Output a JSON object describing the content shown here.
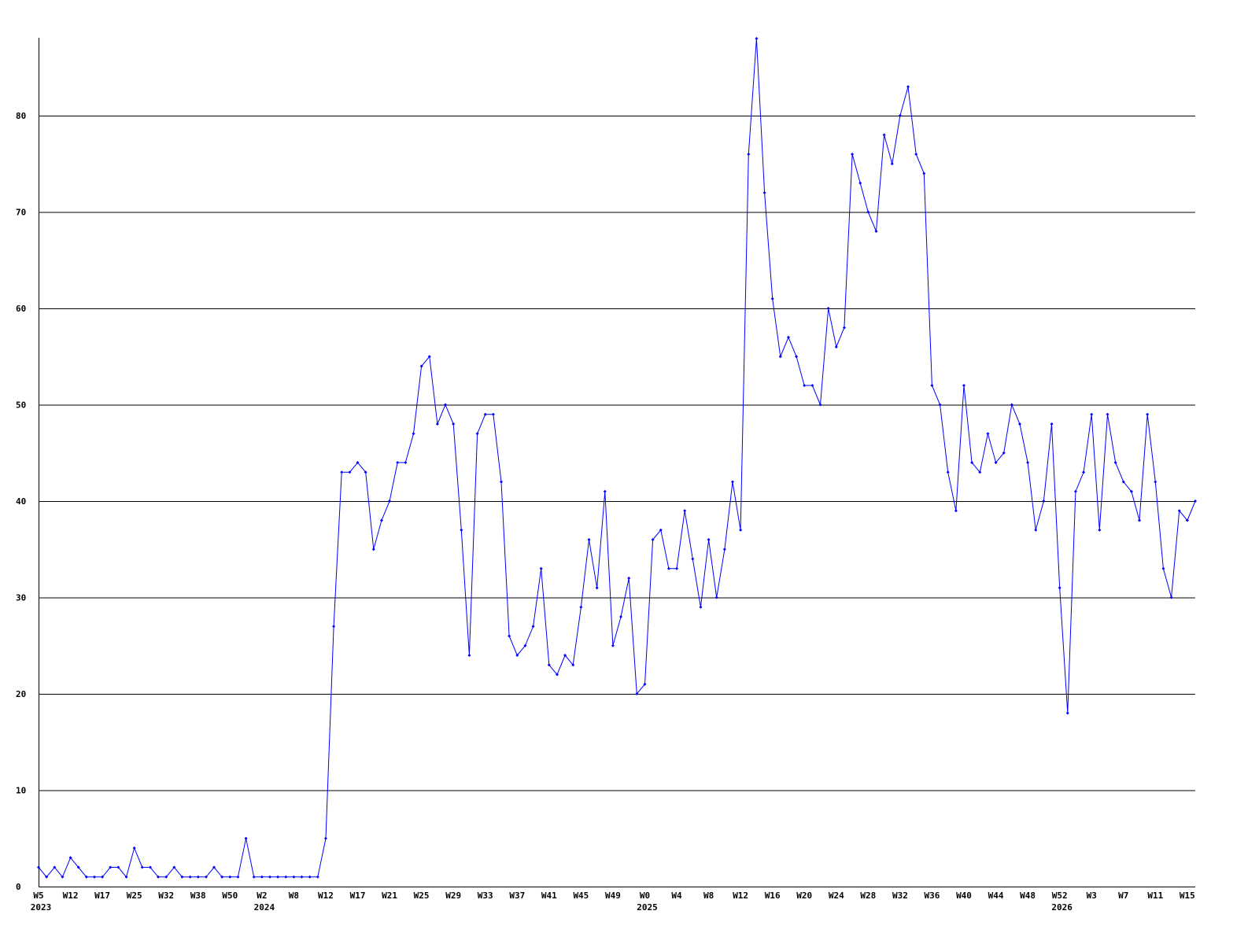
{
  "chart_data": {
    "type": "line",
    "title": "",
    "xlabel": "",
    "ylabel": "",
    "ylim": [
      0,
      88
    ],
    "yticks": [
      0,
      10,
      20,
      30,
      40,
      50,
      60,
      70,
      80
    ],
    "grid": true,
    "line_color": "#0000ff",
    "grid_color": "#000000",
    "x_tick_labels": [
      {
        "index": 0,
        "label": "W5"
      },
      {
        "index": 4,
        "label": "W12"
      },
      {
        "index": 8,
        "label": "W17"
      },
      {
        "index": 12,
        "label": "W25"
      },
      {
        "index": 16,
        "label": "W32"
      },
      {
        "index": 20,
        "label": "W38"
      },
      {
        "index": 24,
        "label": "W50"
      },
      {
        "index": 28,
        "label": "W2"
      },
      {
        "index": 32,
        "label": "W8"
      },
      {
        "index": 36,
        "label": "W12"
      },
      {
        "index": 40,
        "label": "W17"
      },
      {
        "index": 44,
        "label": "W21"
      },
      {
        "index": 48,
        "label": "W25"
      },
      {
        "index": 52,
        "label": "W29"
      },
      {
        "index": 56,
        "label": "W33"
      },
      {
        "index": 60,
        "label": "W37"
      },
      {
        "index": 64,
        "label": "W41"
      },
      {
        "index": 68,
        "label": "W45"
      },
      {
        "index": 72,
        "label": "W49"
      },
      {
        "index": 76,
        "label": "W0"
      },
      {
        "index": 80,
        "label": "W4"
      },
      {
        "index": 84,
        "label": "W8"
      },
      {
        "index": 88,
        "label": "W12"
      },
      {
        "index": 92,
        "label": "W16"
      },
      {
        "index": 96,
        "label": "W20"
      },
      {
        "index": 100,
        "label": "W24"
      },
      {
        "index": 104,
        "label": "W28"
      },
      {
        "index": 108,
        "label": "W32"
      },
      {
        "index": 112,
        "label": "W36"
      },
      {
        "index": 116,
        "label": "W40"
      },
      {
        "index": 120,
        "label": "W44"
      },
      {
        "index": 124,
        "label": "W48"
      },
      {
        "index": 128,
        "label": "W52"
      },
      {
        "index": 132,
        "label": "W3"
      },
      {
        "index": 136,
        "label": "W7"
      },
      {
        "index": 140,
        "label": "W11"
      },
      {
        "index": 144,
        "label": "W15"
      }
    ],
    "year_labels": [
      {
        "index": 0,
        "label": "2023"
      },
      {
        "index": 28,
        "label": "2024"
      },
      {
        "index": 76,
        "label": "2025"
      },
      {
        "index": 128,
        "label": "2026"
      }
    ],
    "values": [
      2,
      1,
      2,
      1,
      3,
      2,
      1,
      1,
      1,
      2,
      2,
      1,
      4,
      2,
      2,
      1,
      1,
      2,
      1,
      1,
      1,
      1,
      2,
      1,
      1,
      1,
      5,
      1,
      1,
      1,
      1,
      1,
      1,
      1,
      1,
      1,
      5,
      27,
      43,
      43,
      44,
      43,
      35,
      38,
      40,
      44,
      44,
      47,
      54,
      55,
      48,
      50,
      48,
      37,
      24,
      47,
      49,
      49,
      42,
      26,
      24,
      25,
      27,
      33,
      23,
      22,
      24,
      23,
      29,
      36,
      31,
      41,
      25,
      28,
      32,
      20,
      21,
      36,
      37,
      33,
      33,
      39,
      34,
      29,
      36,
      30,
      35,
      42,
      37,
      76,
      88,
      72,
      61,
      55,
      57,
      55,
      52,
      52,
      50,
      60,
      56,
      58,
      76,
      73,
      70,
      68,
      78,
      75,
      80,
      83,
      76,
      74,
      52,
      50,
      43,
      39,
      52,
      44,
      43,
      47,
      44,
      45,
      50,
      48,
      44,
      37,
      40,
      48,
      31,
      18,
      41,
      43,
      49,
      37,
      49,
      44,
      42,
      41,
      38,
      49,
      42,
      33,
      30,
      39,
      38,
      40
    ]
  }
}
